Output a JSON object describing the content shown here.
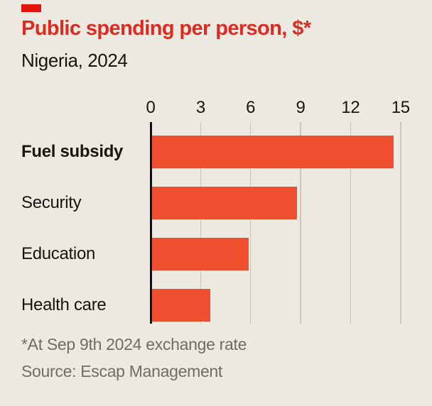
{
  "header": {
    "title": "Public spending per person, $*",
    "subtitle": "Nigeria, 2024"
  },
  "chart_data": {
    "type": "bar",
    "orientation": "horizontal",
    "title": "Public spending per person, $*",
    "subtitle": "Nigeria, 2024",
    "categories": [
      "Fuel subsidy",
      "Security",
      "Education",
      "Health care"
    ],
    "values": [
      14.6,
      8.8,
      5.9,
      3.6
    ],
    "emphasized_category": "Fuel subsidy",
    "xticks": [
      0,
      3,
      6,
      9,
      12,
      15
    ],
    "xlim": [
      0,
      15.7
    ],
    "grid": "vertical-gridlines",
    "legend": "none"
  },
  "footer": {
    "footnote": "*At Sep 9th 2024 exchange rate",
    "source": "Source: Escap Management"
  },
  "colors": {
    "background": "#ECEAE0",
    "bar": "#F0502F",
    "title": "#DF2B1F",
    "text": "#16150F",
    "muted_text": "#6F6E64",
    "gridline": "#C9C8BC",
    "axis": "#121212",
    "brand_tab": "#E3120B"
  }
}
